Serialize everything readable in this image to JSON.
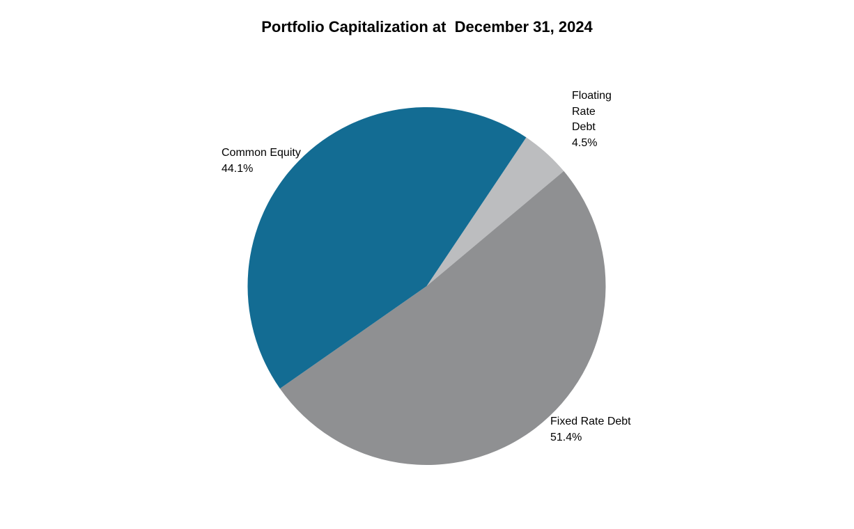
{
  "chart_data": {
    "type": "pie",
    "title": "Portfolio Capitalization at  December 31, 2024",
    "categories": [
      "Floating Rate Debt",
      "Fixed Rate Debt",
      "Common Equity"
    ],
    "values": [
      4.5,
      51.4,
      44.1
    ],
    "unit": "%",
    "colors": [
      "#bcbdbf",
      "#8f9092",
      "#136c93"
    ],
    "start_angle_deg": 33.8,
    "direction": "clockwise",
    "legend": "none (data labels on slices)",
    "data_labels": [
      {
        "name_lines": [
          "Floating",
          "Rate",
          "Debt"
        ],
        "value": "4.5%"
      },
      {
        "name_lines": [
          "Fixed Rate Debt"
        ],
        "value": "51.4%"
      },
      {
        "name_lines": [
          "Common Equity"
        ],
        "value": "44.1%"
      }
    ]
  },
  "labels": {
    "floating": {
      "l1": "Floating",
      "l2": "Rate",
      "l3": "Debt",
      "pct": "4.5%"
    },
    "fixed": {
      "l1": "Fixed Rate Debt",
      "pct": "51.4%"
    },
    "equity": {
      "l1": "Common Equity",
      "pct": "44.1%"
    }
  }
}
